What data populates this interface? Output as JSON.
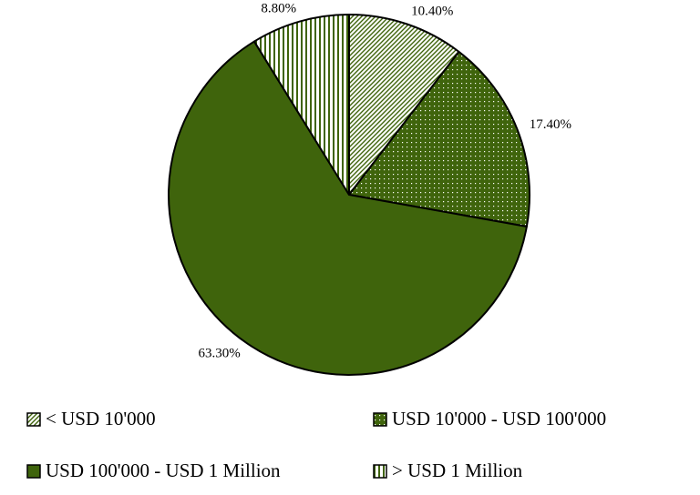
{
  "chart_data": {
    "type": "pie",
    "categories": [
      "< USD 10'000",
      "USD 10'000 - USD 100'000",
      "USD 100'000 - USD 1 Million",
      "> USD 1 Million"
    ],
    "values": [
      10.4,
      17.4,
      63.3,
      8.8
    ],
    "value_labels": [
      "10.40%",
      "17.40%",
      "63.30%",
      "8.80%"
    ],
    "color": "#3f640c",
    "patterns": [
      "diagonal",
      "dots",
      "solid",
      "vertical"
    ]
  }
}
